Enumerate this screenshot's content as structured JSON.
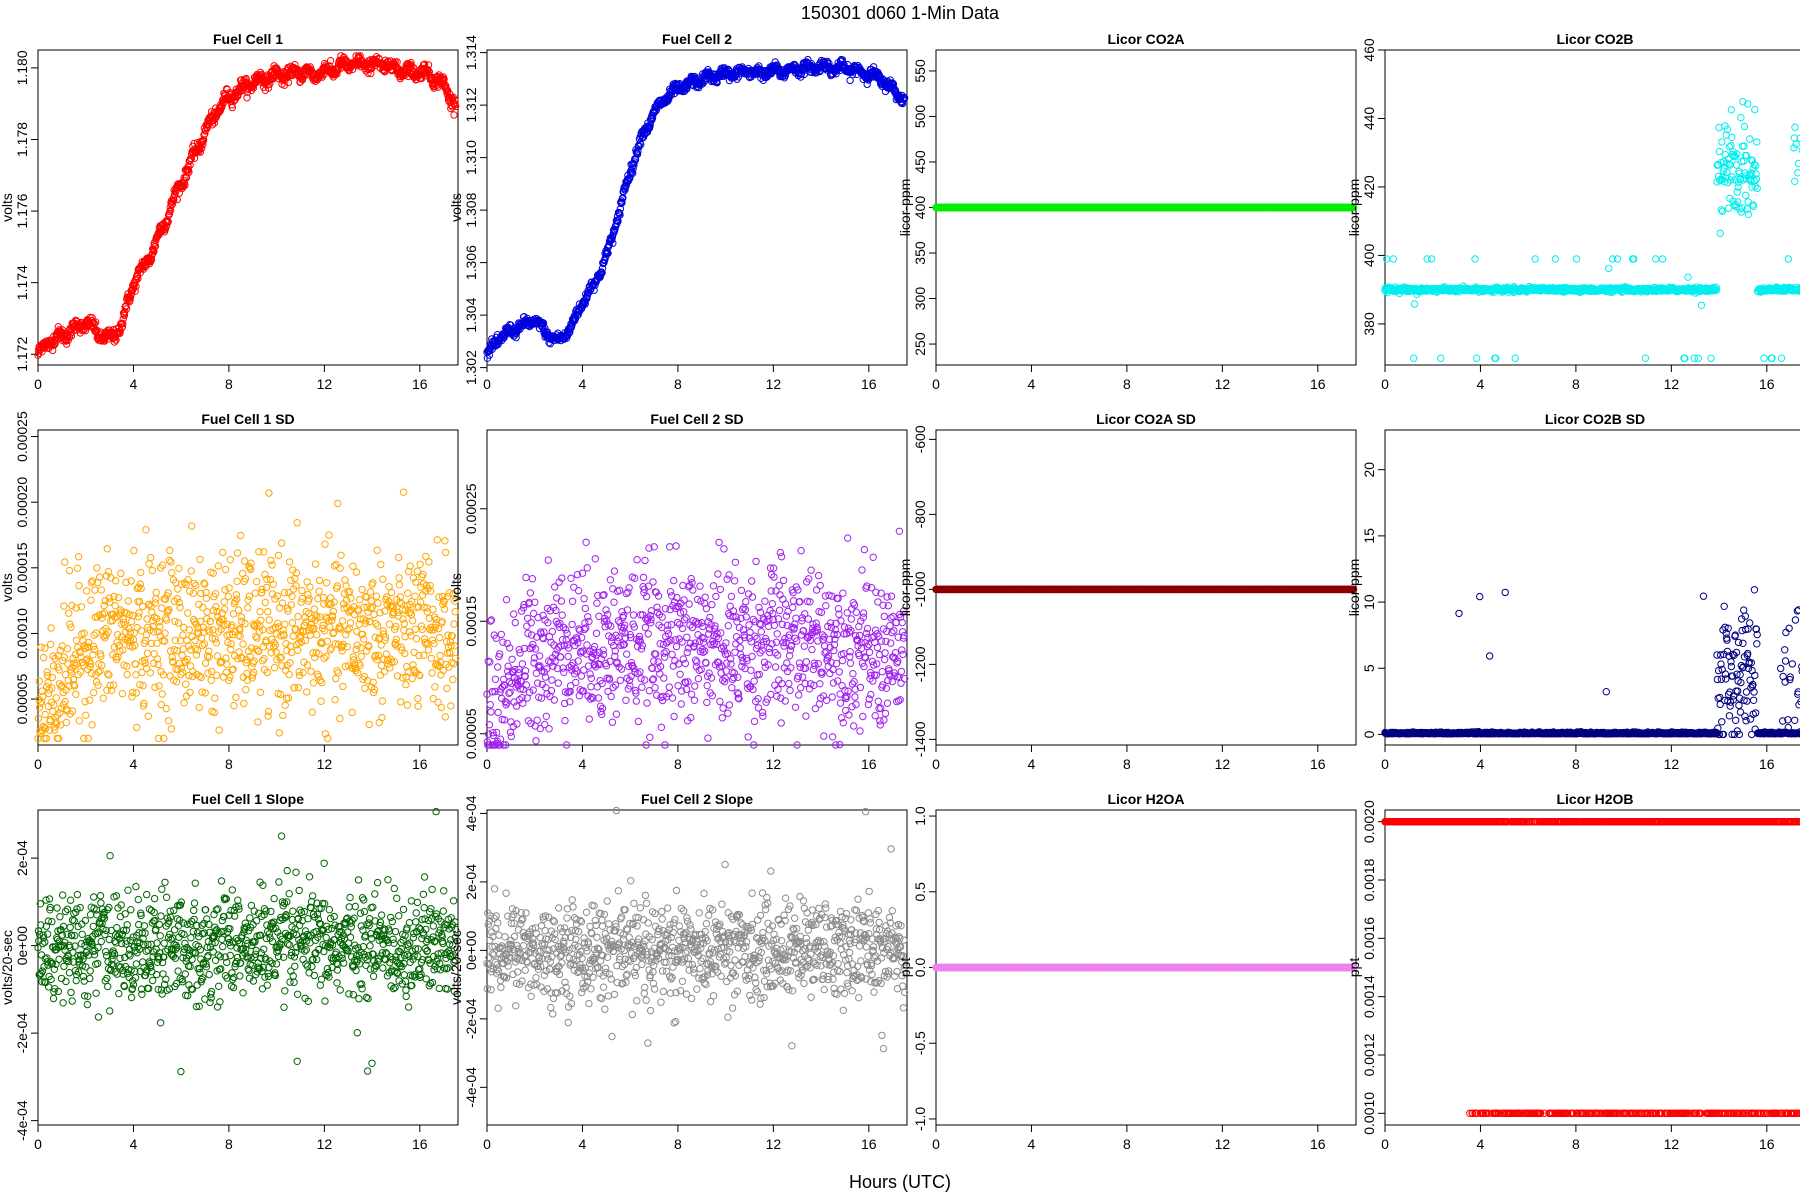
{
  "figure": {
    "title": "150301    d060    1-Min Data",
    "xlabel": "Hours (UTC)"
  },
  "chart_data": [
    {
      "id": "p0",
      "type": "scatter",
      "title": "Fuel Cell 1",
      "ylabel": "volts",
      "color": "#ff0000",
      "xlim": [
        0,
        17.6
      ],
      "ylim": [
        1.1717,
        1.1805
      ],
      "yticks": [
        1.172,
        1.174,
        1.176,
        1.178,
        1.18
      ],
      "yticklabels": [
        "1.172",
        "1.174",
        "1.176",
        "1.178",
        "1.180"
      ],
      "xticks": [
        0,
        4,
        8,
        12,
        16
      ],
      "x": [
        0,
        0.5,
        1,
        1.5,
        2,
        2.5,
        3,
        3.5,
        4,
        4.5,
        5,
        5.5,
        6,
        6.5,
        7,
        7.5,
        8,
        8.5,
        9,
        9.5,
        10,
        10.5,
        11,
        11.5,
        12,
        12.5,
        13,
        13.5,
        14,
        14.5,
        15,
        15.5,
        16,
        16.5,
        17,
        17.5
      ],
      "y": [
        1.172,
        1.1724,
        1.1725,
        1.1727,
        1.1729,
        1.1726,
        1.1724,
        1.1728,
        1.174,
        1.1745,
        1.1752,
        1.176,
        1.1768,
        1.1775,
        1.1782,
        1.1788,
        1.1792,
        1.1794,
        1.1796,
        1.1797,
        1.1798,
        1.1798,
        1.1799,
        1.1798,
        1.1799,
        1.18,
        1.1801,
        1.1801,
        1.1801,
        1.1801,
        1.18,
        1.1799,
        1.1799,
        1.1798,
        1.1795,
        1.179
      ]
    },
    {
      "id": "p1",
      "type": "scatter",
      "title": "Fuel Cell 2",
      "ylabel": "volts",
      "color": "#0000dd",
      "xlim": [
        0,
        17.6
      ],
      "ylim": [
        1.3021,
        1.3141
      ],
      "yticks": [
        1.302,
        1.304,
        1.306,
        1.308,
        1.31,
        1.312,
        1.314
      ],
      "yticklabels": [
        "1.302",
        "1.304",
        "1.306",
        "1.308",
        "1.310",
        "1.312",
        "1.314"
      ],
      "xticks": [
        0,
        4,
        8,
        12,
        16
      ],
      "x": [
        0,
        0.5,
        1,
        1.5,
        2,
        2.5,
        3,
        3.5,
        4,
        4.5,
        5,
        5.5,
        6,
        6.5,
        7,
        7.5,
        8,
        8.5,
        9,
        9.5,
        10,
        10.5,
        11,
        11.5,
        12,
        12.5,
        13,
        13.5,
        14,
        14.5,
        15,
        15.5,
        16,
        16.5,
        17,
        17.5
      ],
      "y": [
        1.3025,
        1.3031,
        1.3034,
        1.3036,
        1.3038,
        1.3033,
        1.303,
        1.3035,
        1.3045,
        1.3052,
        1.3062,
        1.3078,
        1.3095,
        1.3108,
        1.3117,
        1.3123,
        1.3126,
        1.3128,
        1.313,
        1.3131,
        1.3132,
        1.3132,
        1.3133,
        1.3132,
        1.3133,
        1.3133,
        1.3134,
        1.3134,
        1.3135,
        1.3134,
        1.3134,
        1.3133,
        1.3132,
        1.313,
        1.3126,
        1.3122
      ]
    },
    {
      "id": "p2",
      "type": "scatter",
      "title": "Licor CO2A",
      "ylabel": "licor-ppm",
      "color": "#00ee00",
      "xlim": [
        0,
        17.6
      ],
      "ylim": [
        227,
        573
      ],
      "yticks": [
        250,
        300,
        350,
        400,
        450,
        500,
        550
      ],
      "yticklabels": [
        "250",
        "300",
        "350",
        "400",
        "450",
        "500",
        "550"
      ],
      "xticks": [
        0,
        4,
        8,
        12,
        16
      ],
      "x": [
        0,
        17.5
      ],
      "y": [
        400,
        400
      ]
    },
    {
      "id": "p3",
      "type": "scatter",
      "title": "Licor CO2B",
      "ylabel": "licor-ppm",
      "color": "#00eeee",
      "xlim": [
        0,
        17.6
      ],
      "ylim": [
        368,
        460
      ],
      "yticks": [
        380,
        400,
        420,
        440,
        460
      ],
      "yticklabels": [
        "380",
        "400",
        "420",
        "440",
        "460"
      ],
      "xticks": [
        0,
        4,
        8,
        12,
        16
      ],
      "baseline": 390,
      "baseline_range": [
        13.9,
        15.6
      ],
      "elevated_range": [
        13.9,
        15.6
      ],
      "elevated_mean": 425,
      "x": [
        0,
        1,
        2,
        3,
        4,
        5,
        6,
        7,
        8,
        9,
        10,
        11,
        12,
        13,
        14,
        14.5,
        15,
        15.5,
        16,
        17,
        17.5
      ],
      "y": [
        401,
        390,
        390,
        390,
        390,
        390,
        390,
        390,
        390,
        390,
        390,
        390,
        390,
        390,
        423,
        428,
        432,
        440,
        390,
        390,
        445
      ]
    },
    {
      "id": "p4",
      "type": "scatter",
      "title": "Fuel Cell 1 SD",
      "ylabel": "volts",
      "color": "#ffa500",
      "xlim": [
        0,
        17.6
      ],
      "ylim": [
        1.5e-05,
        0.000255
      ],
      "yticks": [
        5e-05,
        0.0001,
        0.00015,
        0.0002,
        0.00025
      ],
      "yticklabels": [
        "0.00005",
        "0.00010",
        "0.00015",
        "0.00020",
        "0.00025"
      ],
      "xticks": [
        0,
        4,
        8,
        12,
        16
      ],
      "x": [
        0,
        0.5,
        1,
        2,
        3,
        4,
        5,
        6,
        7,
        8,
        9,
        10,
        11,
        12,
        13,
        14,
        15,
        16,
        17,
        17.5
      ],
      "y": [
        4e-05,
        5e-05,
        7e-05,
        9e-05,
        0.0001,
        0.0001,
        0.0001,
        0.0001,
        0.0001,
        0.0001,
        0.0001,
        0.0001,
        0.0001,
        0.0001,
        0.0001,
        0.0001,
        0.0001,
        0.0001,
        0.0001,
        9e-05
      ]
    },
    {
      "id": "p5",
      "type": "scatter",
      "title": "Fuel Cell 2 SD",
      "ylabel": "volts",
      "color": "#a020f0",
      "xlim": [
        0,
        17.6
      ],
      "ylim": [
        4e-05,
        0.00032
      ],
      "yticks": [
        5e-05,
        0.00015,
        0.00025
      ],
      "yticklabels": [
        "0.00005",
        "0.00015",
        "0.00025"
      ],
      "xticks": [
        0,
        4,
        8,
        12,
        16
      ],
      "x": [
        0,
        0.5,
        1,
        2,
        3,
        4,
        5,
        6,
        7,
        8,
        9,
        10,
        11,
        12,
        13,
        14,
        15,
        16,
        17,
        17.5
      ],
      "y": [
        6e-05,
        8e-05,
        0.0001,
        0.00012,
        0.00013,
        0.00013,
        0.00013,
        0.00013,
        0.00013,
        0.00013,
        0.00013,
        0.00013,
        0.00013,
        0.00013,
        0.00013,
        0.00013,
        0.00013,
        0.00012,
        0.00012,
        0.00011
      ]
    },
    {
      "id": "p6",
      "type": "scatter",
      "title": "Licor CO2A SD",
      "ylabel": "licor-ppm",
      "color": "#8b0000",
      "xlim": [
        0,
        17.6
      ],
      "ylim": [
        -1415,
        -575
      ],
      "yticks": [
        -1400,
        -1200,
        -1000,
        -800,
        -600
      ],
      "yticklabels": [
        "-1400",
        "-1200",
        "-1000",
        "-800",
        "-600"
      ],
      "xticks": [
        0,
        4,
        8,
        12,
        16
      ],
      "x": [
        0,
        17.5
      ],
      "y": [
        -1000,
        -1000
      ]
    },
    {
      "id": "p7",
      "type": "scatter",
      "title": "Licor CO2B SD",
      "ylabel": "licor-ppm",
      "color": "#000080",
      "xlim": [
        0,
        17.6
      ],
      "ylim": [
        -0.8,
        23
      ],
      "yticks": [
        0,
        5,
        10,
        15,
        20
      ],
      "yticklabels": [
        "0",
        "5",
        "10",
        "15",
        "20"
      ],
      "xticks": [
        0,
        4,
        8,
        12,
        16
      ],
      "x": [
        0,
        1,
        2,
        3,
        4,
        5,
        6,
        7,
        8,
        9,
        10,
        11,
        12,
        13,
        13.9,
        14.5,
        15,
        15.5,
        16,
        17,
        17.5
      ],
      "y": [
        2.5,
        0.1,
        0.1,
        0.1,
        0.1,
        0.1,
        0.1,
        0.1,
        0.1,
        0.1,
        0.1,
        0.1,
        0.1,
        0.1,
        6,
        5,
        4,
        3,
        0.1,
        0.1,
        4
      ]
    },
    {
      "id": "p8",
      "type": "scatter",
      "title": "Fuel Cell 1 Slope",
      "ylabel": "volts/20-sec",
      "color": "#006400",
      "xlim": [
        0,
        17.6
      ],
      "ylim": [
        -0.00041,
        0.00031
      ],
      "yticks": [
        -0.0004,
        -0.0002,
        0,
        0.0002
      ],
      "yticklabels": [
        "-4e-04",
        "-2e-04",
        "0e+00",
        "2e-04"
      ],
      "xticks": [
        0,
        4,
        8,
        12,
        16
      ],
      "x": [
        0,
        2,
        4,
        6,
        8,
        10,
        12,
        14,
        16,
        17.5
      ],
      "y": [
        0,
        0,
        0,
        0,
        0,
        0,
        0,
        0,
        0,
        0
      ]
    },
    {
      "id": "p9",
      "type": "scatter",
      "title": "Fuel Cell 2 Slope",
      "ylabel": "volts/20-sec",
      "color": "#8c8c8c",
      "xlim": [
        0,
        17.6
      ],
      "ylim": [
        -0.00051,
        0.00041
      ],
      "yticks": [
        -0.0004,
        -0.0002,
        0,
        0.0002,
        0.0004
      ],
      "yticklabels": [
        "-4e-04",
        "-2e-04",
        "0e+00",
        "2e-04",
        "4e-04"
      ],
      "xticks": [
        0,
        4,
        8,
        12,
        16
      ],
      "x": [
        0,
        2,
        4,
        6,
        8,
        10,
        12,
        14,
        16,
        17.5
      ],
      "y": [
        0,
        0,
        0,
        0,
        0,
        0,
        0,
        0,
        0,
        0
      ]
    },
    {
      "id": "p10",
      "type": "scatter",
      "title": "Licor H2OA",
      "ylabel": "ppt",
      "color": "#ee82ee",
      "xlim": [
        0,
        17.6
      ],
      "ylim": [
        -1.04,
        1.04
      ],
      "yticks": [
        -1,
        -0.5,
        0,
        0.5,
        1
      ],
      "yticklabels": [
        "-1.0",
        "-0.5",
        "0.0",
        "0.5",
        "1.0"
      ],
      "xticks": [
        0,
        4,
        8,
        12,
        16
      ],
      "x": [
        0,
        17.5
      ],
      "y": [
        0,
        0
      ]
    },
    {
      "id": "p11",
      "type": "scatter",
      "title": "Licor H2OB",
      "ylabel": "ppt",
      "color": "#ff0000",
      "xlim": [
        0,
        17.6
      ],
      "ylim": [
        0.00096,
        0.00204
      ],
      "yticks": [
        0.001,
        0.0012,
        0.0014,
        0.0016,
        0.0018,
        0.002
      ],
      "yticklabels": [
        "0.0010",
        "0.0012",
        "0.0014",
        "0.0016",
        "0.0018",
        "0.0020"
      ],
      "xticks": [
        0,
        4,
        8,
        12,
        16
      ],
      "x": [
        0,
        4,
        8,
        12,
        16,
        17.5
      ],
      "y": [
        0.002,
        0.002,
        0.002,
        0.002,
        0.002,
        0.002
      ]
    }
  ]
}
